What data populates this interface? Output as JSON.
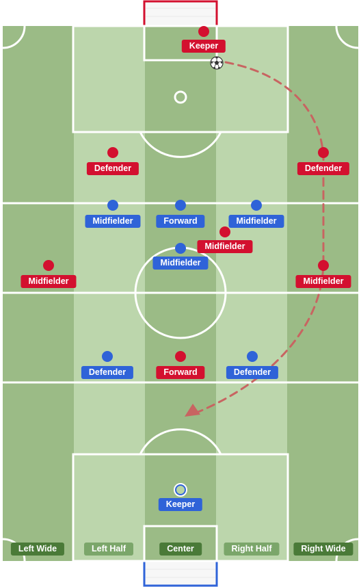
{
  "teams": {
    "home_color": "#d3102f",
    "away_color": "#2f63d8"
  },
  "pitch": {
    "grass_dark": "#9bbb86",
    "grass_light": "#bcd6ac",
    "line_color": "#ffffff"
  },
  "players": [
    {
      "id": "red-keeper",
      "team": "red",
      "label": "Keeper"
    },
    {
      "id": "red-defender-left",
      "team": "red",
      "label": "Defender"
    },
    {
      "id": "red-defender-right",
      "team": "red",
      "label": "Defender"
    },
    {
      "id": "red-midfielder-center",
      "team": "red",
      "label": "Midfielder"
    },
    {
      "id": "red-midfielder-left",
      "team": "red",
      "label": "Midfielder"
    },
    {
      "id": "red-midfielder-right",
      "team": "red",
      "label": "Midfielder"
    },
    {
      "id": "red-forward",
      "team": "red",
      "label": "Forward"
    },
    {
      "id": "blue-midfielder-left",
      "team": "blue",
      "label": "Midfielder"
    },
    {
      "id": "blue-forward",
      "team": "blue",
      "label": "Forward"
    },
    {
      "id": "blue-midfielder-right",
      "team": "blue",
      "label": "Midfielder"
    },
    {
      "id": "blue-midfielder-center",
      "team": "blue",
      "label": "Midfielder"
    },
    {
      "id": "blue-defender-left",
      "team": "blue",
      "label": "Defender"
    },
    {
      "id": "blue-defender-right",
      "team": "blue",
      "label": "Defender"
    },
    {
      "id": "blue-keeper",
      "team": "blue",
      "label": "Keeper"
    }
  ],
  "lanes": [
    {
      "label": "Left Wide",
      "style": "dark"
    },
    {
      "label": "Left Half",
      "style": "light"
    },
    {
      "label": "Center",
      "style": "dark"
    },
    {
      "label": "Right Half",
      "style": "light"
    },
    {
      "label": "Right Wide",
      "style": "dark"
    }
  ],
  "ball": {
    "icon": "soccer-ball-icon"
  },
  "pass_arrow": {
    "color": "#c86461",
    "style": "dashed"
  }
}
